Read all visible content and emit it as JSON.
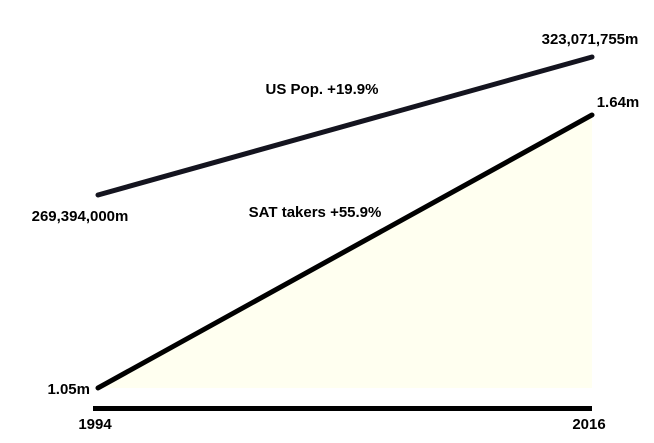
{
  "chart_data": {
    "type": "line",
    "x": [
      1994,
      2016
    ],
    "series": [
      {
        "name": "US Pop. +19.9%",
        "color": "#14141f",
        "values": [
          269394000,
          323071755
        ],
        "value_labels": [
          "269,394,000m",
          "323,071,755m"
        ]
      },
      {
        "name": "SAT takers +55.9%",
        "color": "#000000",
        "fill": "#fffff0",
        "values": [
          1.05,
          1.64
        ],
        "value_labels": [
          "1.05m",
          "1.64m"
        ]
      }
    ]
  }
}
